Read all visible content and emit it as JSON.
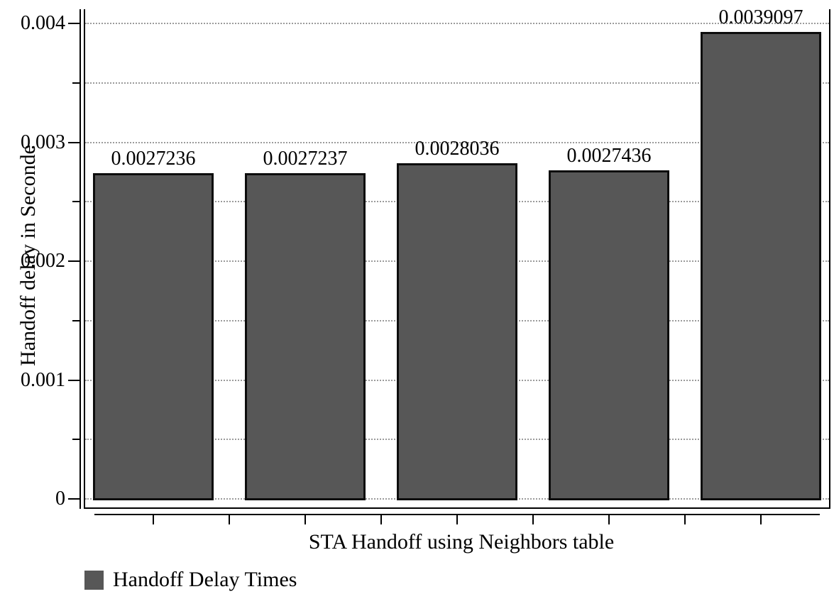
{
  "figure": {
    "background": "#ffffff"
  },
  "chart_data": {
    "type": "bar",
    "title": "",
    "xlabel": "STA Handoff using Neighbors table",
    "ylabel": "Handoff delay in Seconde",
    "series": [
      {
        "name": "Handoff Delay Times",
        "values": [
          0.0027236,
          0.0027237,
          0.0028036,
          0.0027436,
          0.0039097
        ],
        "value_labels": [
          "0.0027236",
          "0.0027237",
          "0.0028036",
          "0.0027436",
          "0.0039097"
        ]
      }
    ],
    "ylim": [
      0,
      0.004
    ],
    "yticks_major": {
      "values": [
        0,
        0.001,
        0.002,
        0.003,
        0.004
      ],
      "labels": [
        "0",
        "0.001",
        "0.002",
        "0.003",
        "0.004"
      ]
    },
    "yticks_minor": [
      0.0005,
      0.0015,
      0.0025,
      0.0035
    ],
    "grid": {
      "horizontal": true,
      "style": "dotted",
      "color": "#9b9b9b"
    },
    "legend": {
      "position": "bottom-left",
      "items": [
        {
          "label": "Handoff Delay Times",
          "swatch_color": "#575757"
        }
      ]
    },
    "colors": {
      "bar_fill": "#575757",
      "bar_border": "#0d0d0d",
      "axis": "#000000",
      "text": "#000000"
    }
  }
}
